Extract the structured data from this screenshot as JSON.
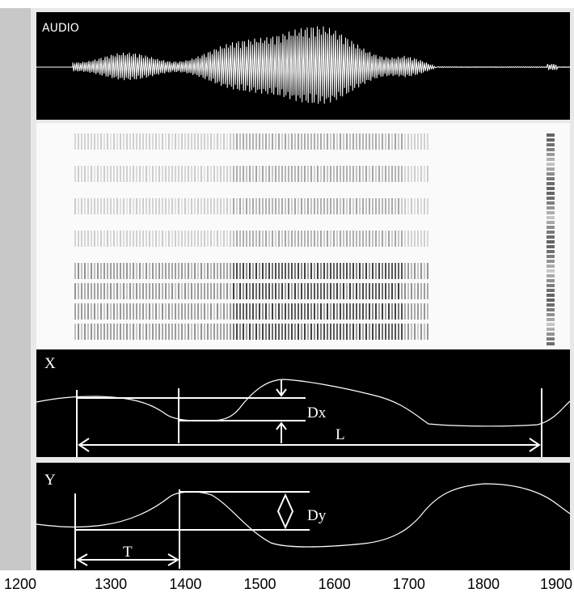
{
  "panels": {
    "audio": "AUDIO",
    "x": "X",
    "y": "Y"
  },
  "annotations": {
    "dx": "Dx",
    "l": "L",
    "dy": "Dy",
    "t": "T"
  },
  "axis": {
    "ticks": [
      1200,
      1300,
      1400,
      1500,
      1600,
      1700,
      1800,
      1900
    ]
  }
}
